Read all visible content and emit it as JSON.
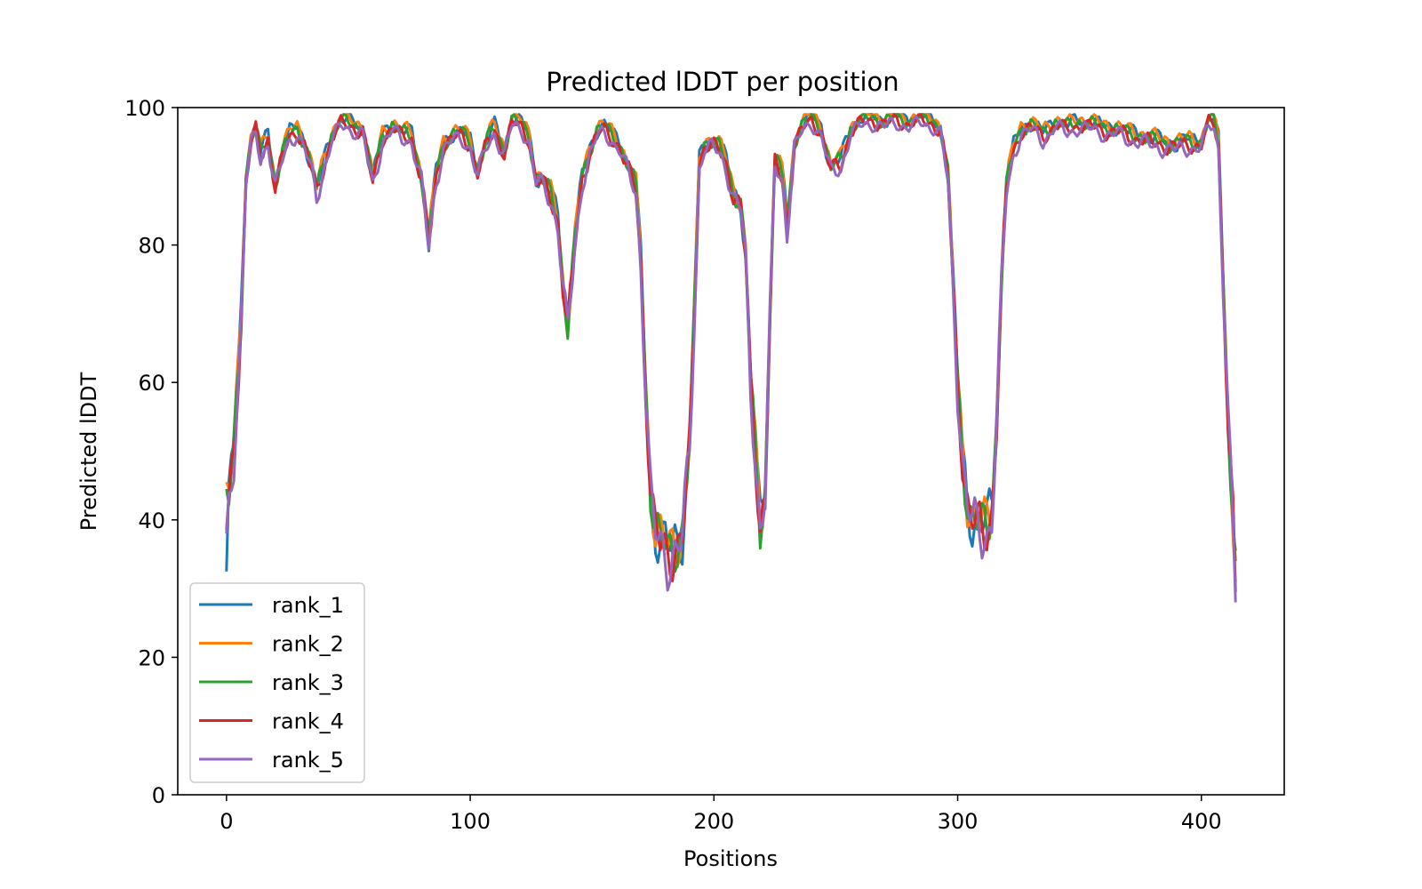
{
  "chart_data": {
    "type": "line",
    "title": "Predicted lDDT per position",
    "xlabel": "Positions",
    "ylabel": "Predicted lDDT",
    "xlim": [
      -20,
      434
    ],
    "ylim": [
      0,
      100
    ],
    "xticks": [
      0,
      100,
      200,
      300,
      400
    ],
    "yticks": [
      0,
      20,
      40,
      60,
      80,
      100
    ],
    "legend_position": "lower-left",
    "base_profile": [
      [
        0,
        38
      ],
      [
        3,
        50
      ],
      [
        6,
        70
      ],
      [
        8,
        90
      ],
      [
        10,
        95
      ],
      [
        12,
        97
      ],
      [
        14,
        93
      ],
      [
        17,
        96
      ],
      [
        20,
        89
      ],
      [
        23,
        93
      ],
      [
        26,
        96
      ],
      [
        29,
        97
      ],
      [
        32,
        95
      ],
      [
        35,
        91
      ],
      [
        37,
        87.5
      ],
      [
        40,
        92
      ],
      [
        43,
        96
      ],
      [
        47,
        98
      ],
      [
        52,
        97.5
      ],
      [
        56,
        97
      ],
      [
        60,
        89
      ],
      [
        64,
        96
      ],
      [
        68,
        97.5
      ],
      [
        72,
        96
      ],
      [
        76,
        96
      ],
      [
        80,
        90
      ],
      [
        83,
        80
      ],
      [
        86,
        90
      ],
      [
        89,
        95
      ],
      [
        93,
        96
      ],
      [
        97,
        96
      ],
      [
        100,
        95
      ],
      [
        103,
        91
      ],
      [
        107,
        95
      ],
      [
        110,
        97
      ],
      [
        114,
        94
      ],
      [
        117,
        98
      ],
      [
        121,
        97.5
      ],
      [
        124,
        96
      ],
      [
        127,
        90
      ],
      [
        130,
        89
      ],
      [
        133,
        87
      ],
      [
        136,
        84
      ],
      [
        138,
        75
      ],
      [
        140,
        68
      ],
      [
        143,
        80
      ],
      [
        146,
        90
      ],
      [
        149,
        94
      ],
      [
        152,
        96.5
      ],
      [
        155,
        97
      ],
      [
        158,
        96
      ],
      [
        161,
        95
      ],
      [
        164,
        92
      ],
      [
        168,
        88
      ],
      [
        170,
        78
      ],
      [
        172,
        60
      ],
      [
        174,
        45
      ],
      [
        176,
        38
      ],
      [
        178,
        36
      ],
      [
        181,
        35
      ],
      [
        184,
        37
      ],
      [
        187,
        38
      ],
      [
        190,
        50
      ],
      [
        192,
        70
      ],
      [
        194,
        92
      ],
      [
        196,
        95
      ],
      [
        199,
        95
      ],
      [
        202,
        94
      ],
      [
        205,
        92
      ],
      [
        208,
        88
      ],
      [
        211,
        86
      ],
      [
        213,
        78
      ],
      [
        215,
        60
      ],
      [
        217,
        50
      ],
      [
        219,
        40
      ],
      [
        221,
        45
      ],
      [
        223,
        70
      ],
      [
        225,
        92
      ],
      [
        228,
        90
      ],
      [
        230,
        83
      ],
      [
        233,
        95
      ],
      [
        236,
        97
      ],
      [
        240,
        98.5
      ],
      [
        244,
        97
      ],
      [
        248,
        91
      ],
      [
        252,
        92
      ],
      [
        256,
        97
      ],
      [
        260,
        98
      ],
      [
        265,
        98.5
      ],
      [
        270,
        98
      ],
      [
        275,
        98.5
      ],
      [
        280,
        98
      ],
      [
        285,
        98.5
      ],
      [
        290,
        98
      ],
      [
        293,
        97
      ],
      [
        296,
        90
      ],
      [
        298,
        75
      ],
      [
        300,
        60
      ],
      [
        302,
        50
      ],
      [
        304,
        43
      ],
      [
        306,
        40
      ],
      [
        308,
        39
      ],
      [
        310,
        38
      ],
      [
        312,
        39
      ],
      [
        314,
        42
      ],
      [
        316,
        55
      ],
      [
        318,
        75
      ],
      [
        320,
        88
      ],
      [
        323,
        94
      ],
      [
        326,
        97
      ],
      [
        330,
        97.5
      ],
      [
        335,
        96
      ],
      [
        340,
        98
      ],
      [
        345,
        97
      ],
      [
        350,
        98
      ],
      [
        355,
        97.5
      ],
      [
        360,
        97
      ],
      [
        365,
        97
      ],
      [
        370,
        96
      ],
      [
        375,
        96
      ],
      [
        380,
        95
      ],
      [
        385,
        95
      ],
      [
        390,
        94.5
      ],
      [
        395,
        95
      ],
      [
        400,
        95
      ],
      [
        403,
        98
      ],
      [
        405,
        98
      ],
      [
        407,
        95
      ],
      [
        409,
        75
      ],
      [
        411,
        55
      ],
      [
        413,
        40
      ],
      [
        414,
        30
      ]
    ],
    "series": [
      {
        "name": "rank_1",
        "color": "#1f77b4",
        "offset": 0.3,
        "phase": 0.0,
        "start": 32.5,
        "end": 35.5
      },
      {
        "name": "rank_2",
        "color": "#ff7f0e",
        "offset": 0.6,
        "phase": 1.3,
        "start": 45.5,
        "end": 31
      },
      {
        "name": "rank_3",
        "color": "#2ca02c",
        "offset": 0.1,
        "phase": 2.1,
        "start": 44.5,
        "end": 34
      },
      {
        "name": "rank_4",
        "color": "#d62728",
        "offset": -0.4,
        "phase": 3.4,
        "start": 38.5,
        "end": 29.5
      },
      {
        "name": "rank_5",
        "color": "#9467bd",
        "offset": -0.8,
        "phase": 4.7,
        "start": 38,
        "end": 28
      }
    ]
  }
}
